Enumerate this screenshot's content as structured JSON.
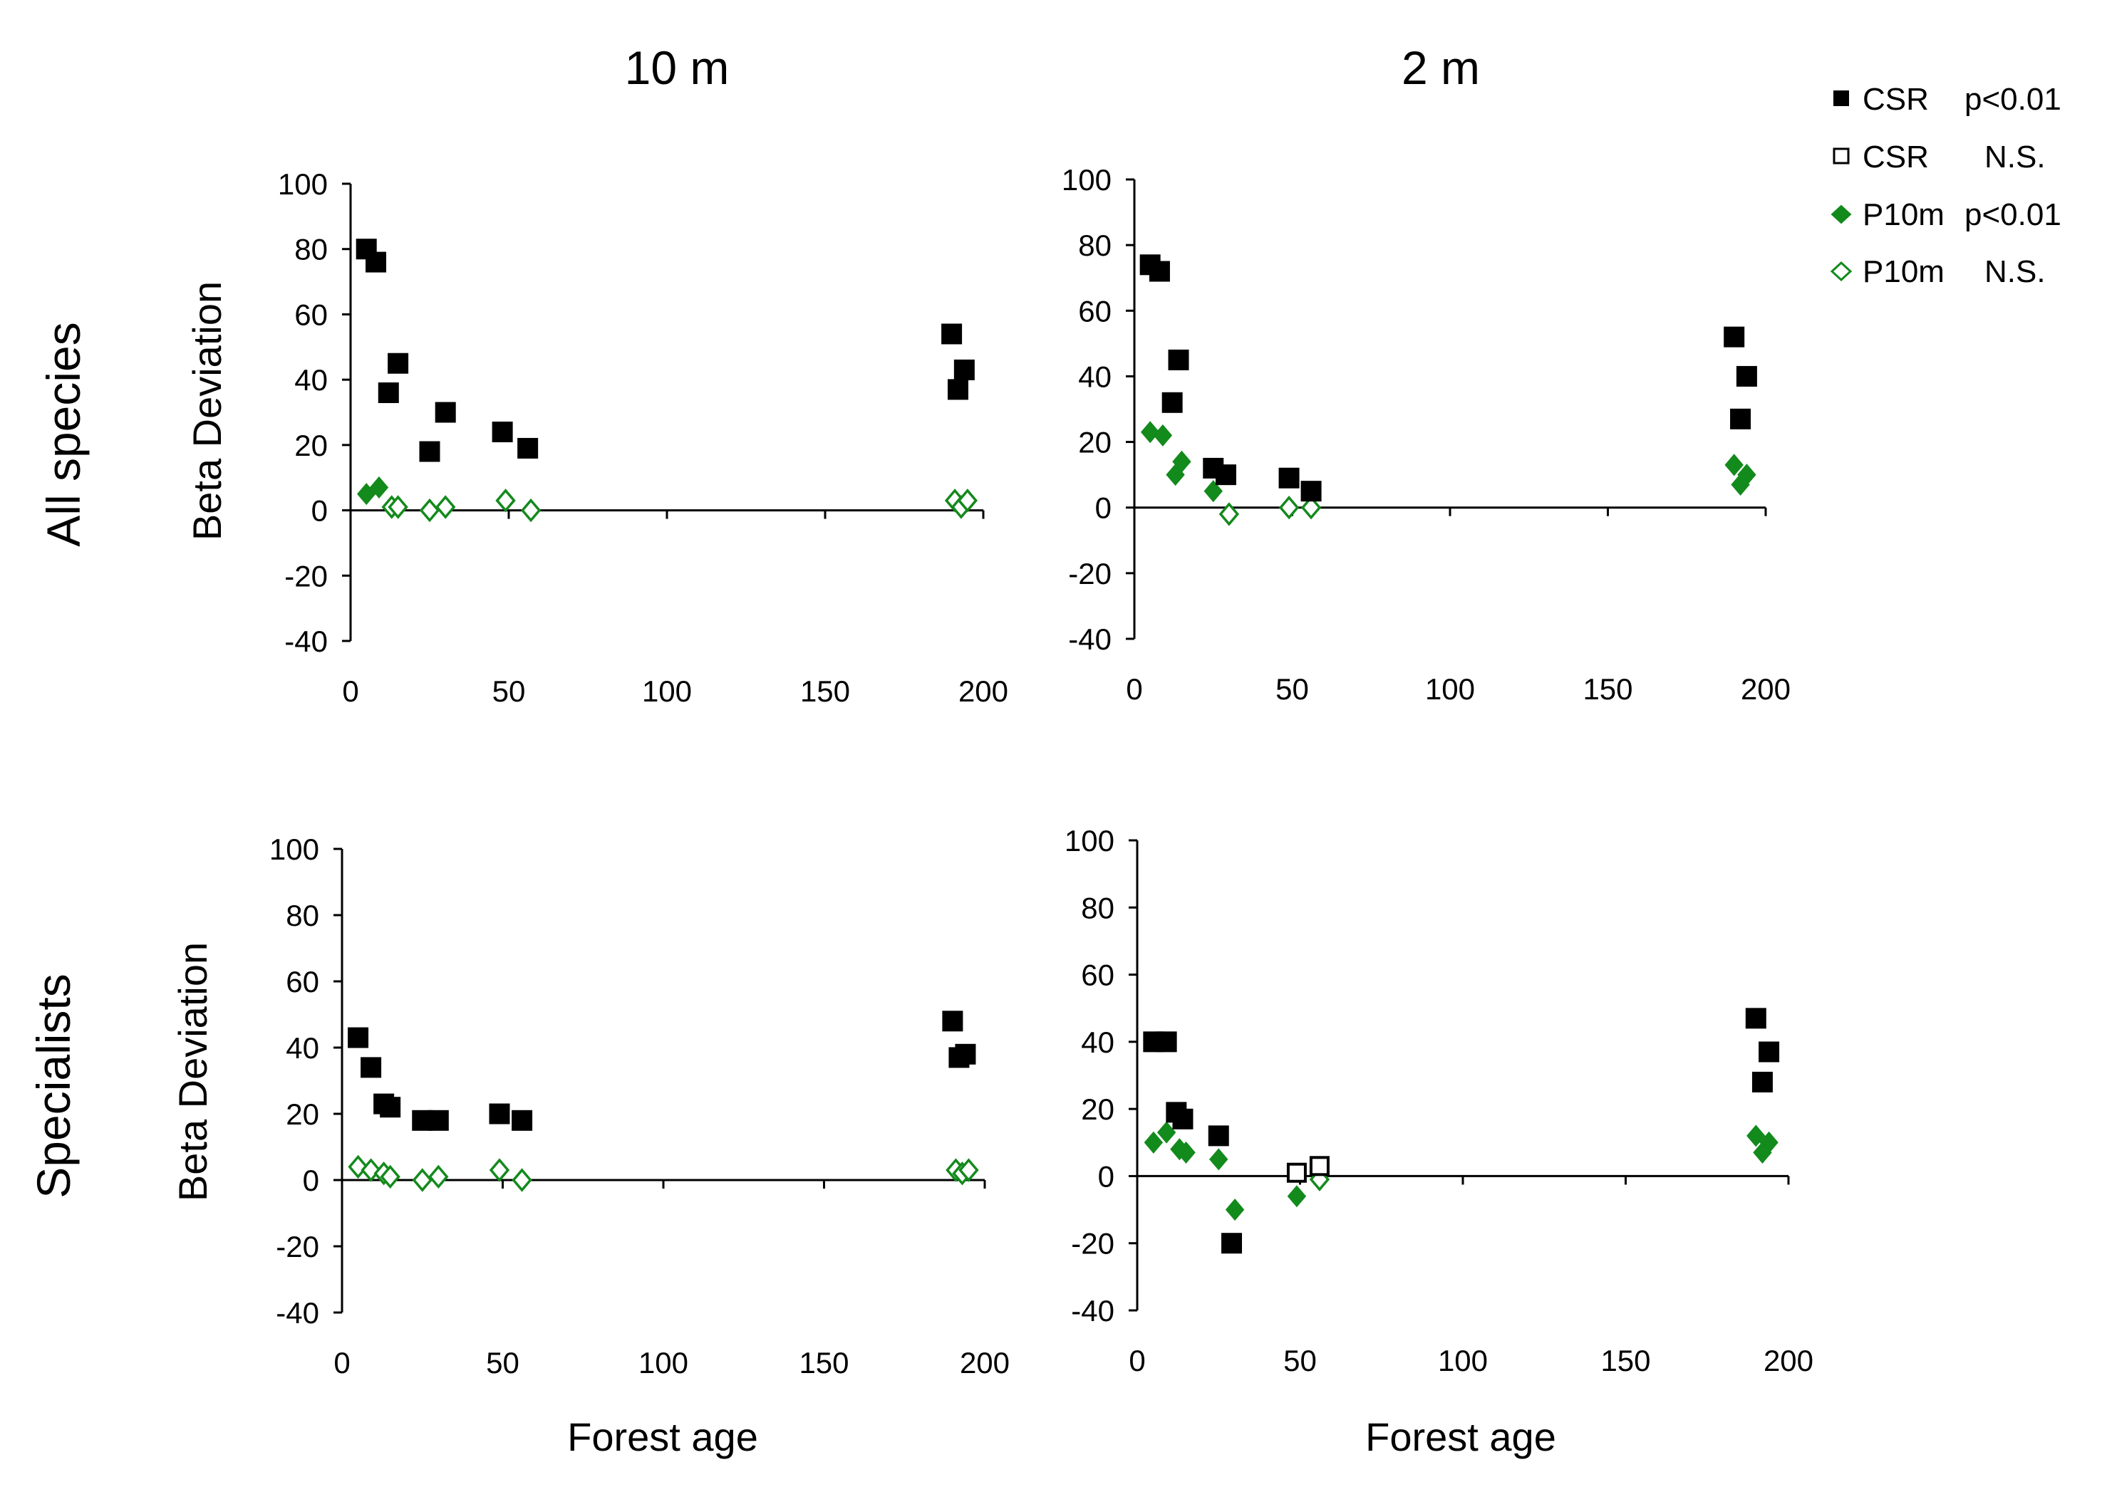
{
  "figure": {
    "column_titles": [
      "10 m",
      "2 m"
    ],
    "row_labels": [
      "All species",
      "Specialists"
    ],
    "legend": [
      {
        "label": "CSR",
        "sig": "p<0.01",
        "marker": "square",
        "filled": true
      },
      {
        "label": "CSR",
        "sig": "N.S.",
        "marker": "square",
        "filled": false
      },
      {
        "label": "P10m",
        "sig": "p<0.01",
        "marker": "diamond",
        "filled": true
      },
      {
        "label": "P10m",
        "sig": "N.S.",
        "marker": "diamond",
        "filled": false
      }
    ],
    "colors": {
      "csr": "#000000",
      "p10m": "#138a1c",
      "axis": "#000000"
    }
  },
  "chart_data": [
    {
      "type": "scatter",
      "panel": "all-species-10m",
      "title": "10 m",
      "row": "All species",
      "xlabel": "",
      "ylabel": "Beta Deviation",
      "xlim": [
        0,
        200
      ],
      "ylim": [
        -40,
        100
      ],
      "xticks": [
        0,
        50,
        100,
        150,
        200
      ],
      "yticks": [
        100,
        80,
        60,
        40,
        20,
        0,
        -20,
        -40
      ],
      "series": [
        {
          "name": "CSR",
          "marker": "square",
          "points": [
            {
              "x": 5,
              "y": 80,
              "sig": true
            },
            {
              "x": 8,
              "y": 76,
              "sig": true
            },
            {
              "x": 12,
              "y": 36,
              "sig": true
            },
            {
              "x": 15,
              "y": 45,
              "sig": true
            },
            {
              "x": 25,
              "y": 18,
              "sig": true
            },
            {
              "x": 30,
              "y": 30,
              "sig": true
            },
            {
              "x": 48,
              "y": 24,
              "sig": true
            },
            {
              "x": 56,
              "y": 19,
              "sig": true
            },
            {
              "x": 190,
              "y": 54,
              "sig": true
            },
            {
              "x": 192,
              "y": 37,
              "sig": true
            },
            {
              "x": 194,
              "y": 43,
              "sig": true
            }
          ]
        },
        {
          "name": "P10m",
          "marker": "diamond",
          "points": [
            {
              "x": 5,
              "y": 5,
              "sig": true
            },
            {
              "x": 9,
              "y": 7,
              "sig": true
            },
            {
              "x": 13,
              "y": 1,
              "sig": false
            },
            {
              "x": 15,
              "y": 1,
              "sig": false
            },
            {
              "x": 25,
              "y": 0,
              "sig": false
            },
            {
              "x": 30,
              "y": 1,
              "sig": false
            },
            {
              "x": 49,
              "y": 3,
              "sig": false
            },
            {
              "x": 57,
              "y": 0,
              "sig": false
            },
            {
              "x": 191,
              "y": 3,
              "sig": false
            },
            {
              "x": 193,
              "y": 1,
              "sig": false
            },
            {
              "x": 195,
              "y": 3,
              "sig": false
            }
          ]
        }
      ]
    },
    {
      "type": "scatter",
      "panel": "all-species-2m",
      "title": "2 m",
      "row": "All species",
      "xlabel": "",
      "ylabel": "",
      "xlim": [
        0,
        200
      ],
      "ylim": [
        -40,
        100
      ],
      "xticks": [
        0,
        50,
        100,
        150,
        200
      ],
      "yticks": [
        100,
        80,
        60,
        40,
        20,
        0,
        -20,
        -40
      ],
      "series": [
        {
          "name": "CSR",
          "marker": "square",
          "points": [
            {
              "x": 5,
              "y": 74,
              "sig": true
            },
            {
              "x": 8,
              "y": 72,
              "sig": true
            },
            {
              "x": 12,
              "y": 32,
              "sig": true
            },
            {
              "x": 14,
              "y": 45,
              "sig": true
            },
            {
              "x": 25,
              "y": 12,
              "sig": true
            },
            {
              "x": 29,
              "y": 10,
              "sig": true
            },
            {
              "x": 49,
              "y": 9,
              "sig": true
            },
            {
              "x": 56,
              "y": 5,
              "sig": true
            },
            {
              "x": 190,
              "y": 52,
              "sig": true
            },
            {
              "x": 192,
              "y": 27,
              "sig": true
            },
            {
              "x": 194,
              "y": 40,
              "sig": true
            }
          ]
        },
        {
          "name": "P10m",
          "marker": "diamond",
          "points": [
            {
              "x": 5,
              "y": 23,
              "sig": true
            },
            {
              "x": 9,
              "y": 22,
              "sig": true
            },
            {
              "x": 13,
              "y": 10,
              "sig": true
            },
            {
              "x": 15,
              "y": 14,
              "sig": true
            },
            {
              "x": 25,
              "y": 5,
              "sig": true
            },
            {
              "x": 30,
              "y": -2,
              "sig": false
            },
            {
              "x": 49,
              "y": 0,
              "sig": false
            },
            {
              "x": 56,
              "y": 0,
              "sig": false
            },
            {
              "x": 190,
              "y": 13,
              "sig": true
            },
            {
              "x": 192,
              "y": 7,
              "sig": true
            },
            {
              "x": 194,
              "y": 10,
              "sig": true
            }
          ]
        }
      ]
    },
    {
      "type": "scatter",
      "panel": "specialists-10m",
      "title": "",
      "row": "Specialists",
      "xlabel": "Forest age",
      "ylabel": "Beta Deviation",
      "xlim": [
        0,
        200
      ],
      "ylim": [
        -40,
        100
      ],
      "xticks": [
        0,
        50,
        100,
        150,
        200
      ],
      "yticks": [
        100,
        80,
        60,
        40,
        20,
        0,
        -20,
        -40
      ],
      "series": [
        {
          "name": "CSR",
          "marker": "square",
          "points": [
            {
              "x": 5,
              "y": 43,
              "sig": true
            },
            {
              "x": 9,
              "y": 34,
              "sig": true
            },
            {
              "x": 13,
              "y": 23,
              "sig": true
            },
            {
              "x": 15,
              "y": 22,
              "sig": true
            },
            {
              "x": 25,
              "y": 18,
              "sig": true
            },
            {
              "x": 30,
              "y": 18,
              "sig": true
            },
            {
              "x": 49,
              "y": 20,
              "sig": true
            },
            {
              "x": 56,
              "y": 18,
              "sig": true
            },
            {
              "x": 190,
              "y": 48,
              "sig": true
            },
            {
              "x": 192,
              "y": 37,
              "sig": true
            },
            {
              "x": 194,
              "y": 38,
              "sig": true
            }
          ]
        },
        {
          "name": "P10m",
          "marker": "diamond",
          "points": [
            {
              "x": 5,
              "y": 4,
              "sig": false
            },
            {
              "x": 9,
              "y": 3,
              "sig": false
            },
            {
              "x": 13,
              "y": 2,
              "sig": false
            },
            {
              "x": 15,
              "y": 1,
              "sig": false
            },
            {
              "x": 25,
              "y": 0,
              "sig": false
            },
            {
              "x": 30,
              "y": 1,
              "sig": false
            },
            {
              "x": 49,
              "y": 3,
              "sig": false
            },
            {
              "x": 56,
              "y": 0,
              "sig": false
            },
            {
              "x": 191,
              "y": 3,
              "sig": false
            },
            {
              "x": 193,
              "y": 2,
              "sig": false
            },
            {
              "x": 195,
              "y": 3,
              "sig": false
            }
          ]
        }
      ]
    },
    {
      "type": "scatter",
      "panel": "specialists-2m",
      "title": "",
      "row": "Specialists",
      "xlabel": "Forest age",
      "ylabel": "",
      "xlim": [
        0,
        200
      ],
      "ylim": [
        -40,
        100
      ],
      "xticks": [
        0,
        50,
        100,
        150,
        200
      ],
      "yticks": [
        100,
        80,
        60,
        40,
        20,
        0,
        -20,
        -40
      ],
      "series": [
        {
          "name": "CSR",
          "marker": "square",
          "points": [
            {
              "x": 5,
              "y": 40,
              "sig": true
            },
            {
              "x": 9,
              "y": 40,
              "sig": true
            },
            {
              "x": 12,
              "y": 19,
              "sig": true
            },
            {
              "x": 14,
              "y": 17,
              "sig": true
            },
            {
              "x": 25,
              "y": 12,
              "sig": true
            },
            {
              "x": 29,
              "y": -20,
              "sig": true
            },
            {
              "x": 49,
              "y": 1,
              "sig": false
            },
            {
              "x": 56,
              "y": 3,
              "sig": false
            },
            {
              "x": 190,
              "y": 47,
              "sig": true
            },
            {
              "x": 192,
              "y": 28,
              "sig": true
            },
            {
              "x": 194,
              "y": 37,
              "sig": true
            }
          ]
        },
        {
          "name": "P10m",
          "marker": "diamond",
          "points": [
            {
              "x": 5,
              "y": 10,
              "sig": true
            },
            {
              "x": 9,
              "y": 13,
              "sig": true
            },
            {
              "x": 13,
              "y": 8,
              "sig": true
            },
            {
              "x": 15,
              "y": 7,
              "sig": true
            },
            {
              "x": 25,
              "y": 5,
              "sig": true
            },
            {
              "x": 30,
              "y": -10,
              "sig": true
            },
            {
              "x": 49,
              "y": -6,
              "sig": true
            },
            {
              "x": 56,
              "y": -1,
              "sig": false
            },
            {
              "x": 190,
              "y": 12,
              "sig": true
            },
            {
              "x": 192,
              "y": 7,
              "sig": true
            },
            {
              "x": 194,
              "y": 10,
              "sig": true
            }
          ]
        }
      ]
    }
  ]
}
